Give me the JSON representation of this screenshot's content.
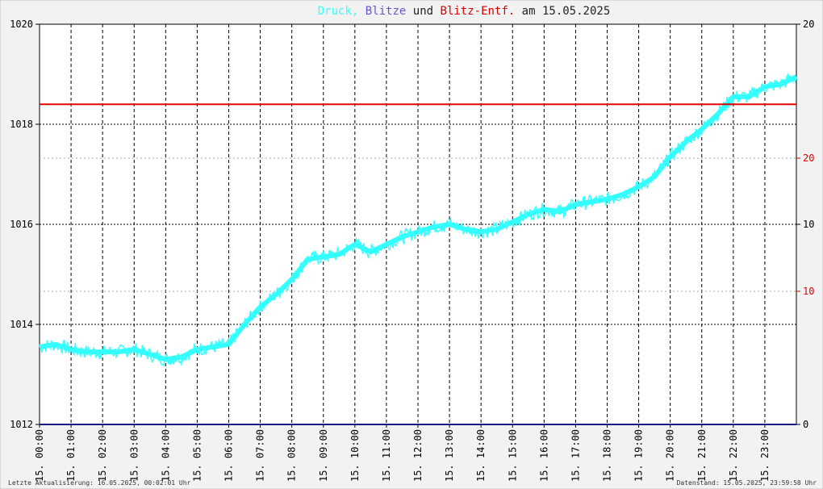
{
  "title": {
    "part1": "Druck,",
    "part2": "Blitze",
    "part3": "und",
    "part4": "Blitz-Entf.",
    "part5": "am 15.05.2025",
    "color1": "#33ffff",
    "color2": "#6655cc",
    "color3": "#222222",
    "color4": "#dd0000",
    "color5": "#222222"
  },
  "footer": {
    "left": "Letzte Aktualisierung: 16.05.2025, 00:02:01 Uhr",
    "right": "Datenstand: 15.05.2025, 23:59:58 Uhr"
  },
  "chart_data": {
    "type": "line",
    "title": "Druck, Blitze und Blitz-Entf. am 15.05.2025",
    "x_tick_labels": [
      "15. 00:00",
      "15. 01:00",
      "15. 02:00",
      "15. 03:00",
      "15. 04:00",
      "15. 05:00",
      "15. 06:00",
      "15. 07:00",
      "15. 08:00",
      "15. 09:00",
      "15. 10:00",
      "15. 11:00",
      "15. 12:00",
      "15. 13:00",
      "15. 14:00",
      "15. 15:00",
      "15. 16:00",
      "15. 17:00",
      "15. 18:00",
      "15. 19:00",
      "15. 20:00",
      "15. 21:00",
      "15. 22:00",
      "15. 23:00"
    ],
    "x_range_hours": [
      0,
      24
    ],
    "y_left": {
      "ticks": [
        1012,
        1014,
        1016,
        1018,
        1020
      ],
      "range": [
        1012,
        1020
      ]
    },
    "y_right_black": {
      "ticks": [
        "0",
        "10",
        "20"
      ]
    },
    "y_right_red": {
      "ticks": [
        "10",
        "20"
      ]
    },
    "grid": true,
    "colors": {
      "pressure": "#33ffff",
      "lightning": "#1a1a80",
      "distance": "#dd0000",
      "grid": "#000000"
    },
    "series": [
      {
        "name": "Druck",
        "x_hours": [
          0,
          0.5,
          1,
          1.5,
          2,
          2.5,
          3,
          3.5,
          4,
          4.5,
          5,
          5.5,
          6,
          6.5,
          7,
          7.5,
          8,
          8.5,
          9,
          9.5,
          10,
          10.5,
          11,
          11.5,
          12,
          12.5,
          13,
          13.5,
          14,
          14.5,
          15,
          15.5,
          16,
          16.5,
          17,
          17.5,
          18,
          18.5,
          19,
          19.5,
          20,
          20.5,
          21,
          21.5,
          22,
          22.5,
          23,
          23.5,
          24
        ],
        "values": [
          1013.55,
          1013.6,
          1013.5,
          1013.45,
          1013.45,
          1013.45,
          1013.5,
          1013.4,
          1013.3,
          1013.35,
          1013.5,
          1013.55,
          1013.6,
          1014.0,
          1014.35,
          1014.6,
          1014.9,
          1015.3,
          1015.35,
          1015.4,
          1015.6,
          1015.45,
          1015.6,
          1015.75,
          1015.85,
          1015.95,
          1016.0,
          1015.9,
          1015.85,
          1015.9,
          1016.05,
          1016.2,
          1016.3,
          1016.25,
          1016.4,
          1016.45,
          1016.5,
          1016.6,
          1016.75,
          1016.95,
          1017.35,
          1017.65,
          1017.9,
          1018.2,
          1018.55,
          1018.55,
          1018.75,
          1018.8,
          1018.95
        ]
      },
      {
        "name": "Blitz-Entf.",
        "x_hours": [
          0,
          24
        ],
        "values": [
          1018.4,
          1018.4
        ]
      },
      {
        "name": "Blitze",
        "x_hours": [
          0,
          24
        ],
        "values": [
          1012,
          1012
        ]
      }
    ]
  }
}
